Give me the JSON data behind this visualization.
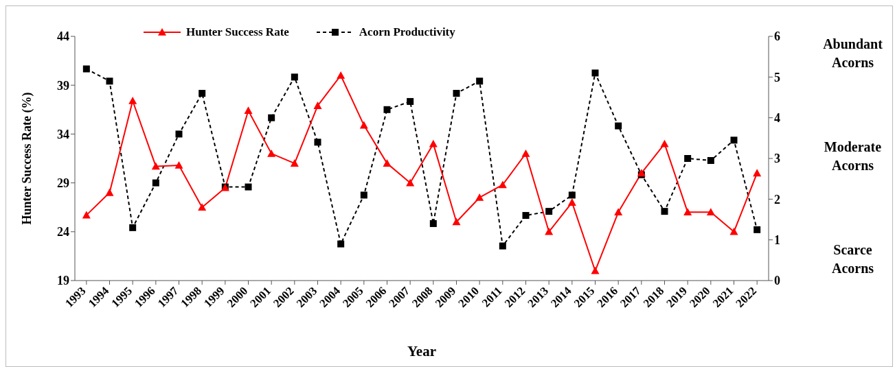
{
  "chart_data": {
    "type": "line",
    "xlabel": "Year",
    "ylabel": "Hunter Success Rate (%)",
    "categories": [
      "1993",
      "1994",
      "1995",
      "1996",
      "1997",
      "1998",
      "1999",
      "2000",
      "2001",
      "2002",
      "2003",
      "2004",
      "2005",
      "2006",
      "2007",
      "2008",
      "2009",
      "2010",
      "2011",
      "2012",
      "2013",
      "2014",
      "2015",
      "2016",
      "2017",
      "2018",
      "2019",
      "2020",
      "2021",
      "2022"
    ],
    "series": [
      {
        "name": "Hunter Success Rate",
        "color": "#ff0000",
        "marker": "triangle",
        "line_style": "solid",
        "values": [
          25.7,
          28.0,
          37.4,
          30.7,
          30.8,
          26.5,
          28.5,
          36.4,
          32.0,
          31.0,
          36.9,
          40.0,
          34.9,
          31.0,
          29.0,
          33.0,
          25.0,
          27.5,
          28.8,
          32.0,
          24.0,
          27.0,
          20.0,
          26.0,
          30.0,
          33.0,
          26.0,
          26.0,
          24.0,
          30.0
        ]
      },
      {
        "name": "Acorn Productivity",
        "color": "#000000",
        "marker": "square",
        "line_style": "dashed",
        "axis": "y2",
        "values": [
          5.2,
          4.9,
          1.3,
          2.4,
          3.6,
          4.6,
          2.3,
          2.3,
          4.0,
          5.0,
          3.4,
          0.9,
          2.1,
          4.2,
          4.4,
          1.4,
          4.6,
          4.9,
          0.85,
          1.6,
          1.7,
          2.1,
          5.1,
          3.8,
          2.6,
          1.7,
          3.0,
          2.95,
          3.45,
          1.25
        ]
      }
    ],
    "ylim": [
      19,
      44
    ],
    "yticks": [
      19,
      24,
      29,
      34,
      39,
      44
    ],
    "y2lim": [
      0,
      6
    ],
    "y2ticks": [
      0,
      1,
      2,
      3,
      4,
      5,
      6
    ],
    "grid": false,
    "legend": "top",
    "annotations": [
      "Abundant Acorns",
      "Moderate Acorns",
      "Scarce Acorns"
    ]
  }
}
